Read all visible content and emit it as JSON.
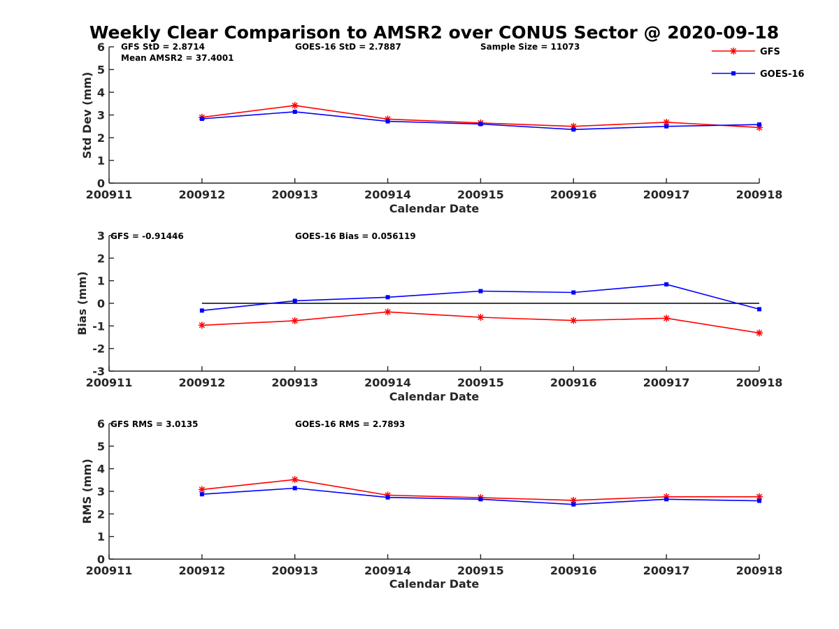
{
  "figure": {
    "title": "Weekly Clear Comparison to AMSR2 over CONUS Sector @ 2020-09-18",
    "colors": {
      "GFS": "#ff0000",
      "GOES-16": "#0000ff",
      "zero_line": "#000000"
    }
  },
  "legend": [
    {
      "name": "GFS",
      "marker": "asterisk"
    },
    {
      "name": "GOES-16",
      "marker": "square"
    }
  ],
  "chart_data": [
    {
      "type": "line",
      "title": "Weekly Clear Comparison to AMSR2 over CONUS Sector @ 2020-09-18",
      "xlabel": "Calendar Date",
      "ylabel": "Std Dev (mm)",
      "categories": [
        "200911",
        "200912",
        "200913",
        "200914",
        "200915",
        "200916",
        "200917",
        "200918"
      ],
      "ylim": [
        0,
        6
      ],
      "yticks": [
        "0",
        "1",
        "2",
        "3",
        "4",
        "5",
        "6"
      ],
      "series": [
        {
          "name": "GFS",
          "values": [
            null,
            2.9,
            3.42,
            2.82,
            2.65,
            2.5,
            2.68,
            2.45
          ]
        },
        {
          "name": "GOES-16",
          "values": [
            null,
            2.83,
            3.14,
            2.72,
            2.6,
            2.36,
            2.5,
            2.58
          ]
        }
      ],
      "annotations": [
        "GFS StD = 2.8714",
        "GOES-16 StD = 2.7887",
        "Sample Size = 11073",
        "Mean AMSR2 = 37.4001"
      ],
      "legend_position": "top-right",
      "grid": false
    },
    {
      "type": "line",
      "xlabel": "Calendar Date",
      "ylabel": "Bias (mm)",
      "categories": [
        "200911",
        "200912",
        "200913",
        "200914",
        "200915",
        "200916",
        "200917",
        "200918"
      ],
      "ylim": [
        -3,
        3
      ],
      "yticks": [
        "-3",
        "-2",
        "-1",
        "0",
        "1",
        "2",
        "3"
      ],
      "zero_line": true,
      "series": [
        {
          "name": "GFS",
          "values": [
            null,
            -0.97,
            -0.77,
            -0.38,
            -0.62,
            -0.76,
            -0.66,
            -1.31
          ]
        },
        {
          "name": "GOES-16",
          "values": [
            null,
            -0.32,
            0.11,
            0.27,
            0.54,
            0.48,
            0.84,
            -0.26
          ]
        }
      ],
      "annotations": [
        "GFS = -0.91446",
        "GOES-16 Bias  = 0.056119"
      ],
      "grid": false
    },
    {
      "type": "line",
      "xlabel": "Calendar Date",
      "ylabel": "RMS (mm)",
      "categories": [
        "200911",
        "200912",
        "200913",
        "200914",
        "200915",
        "200916",
        "200917",
        "200918"
      ],
      "ylim": [
        0,
        6
      ],
      "yticks": [
        "0",
        "1",
        "2",
        "3",
        "4",
        "5",
        "6"
      ],
      "series": [
        {
          "name": "GFS",
          "values": [
            null,
            3.08,
            3.52,
            2.83,
            2.72,
            2.6,
            2.76,
            2.76
          ]
        },
        {
          "name": "GOES-16",
          "values": [
            null,
            2.87,
            3.14,
            2.73,
            2.65,
            2.42,
            2.65,
            2.58
          ]
        }
      ],
      "annotations": [
        "GFS RMS = 3.0135",
        "GOES-16 RMS = 2.7893"
      ],
      "grid": false
    }
  ]
}
